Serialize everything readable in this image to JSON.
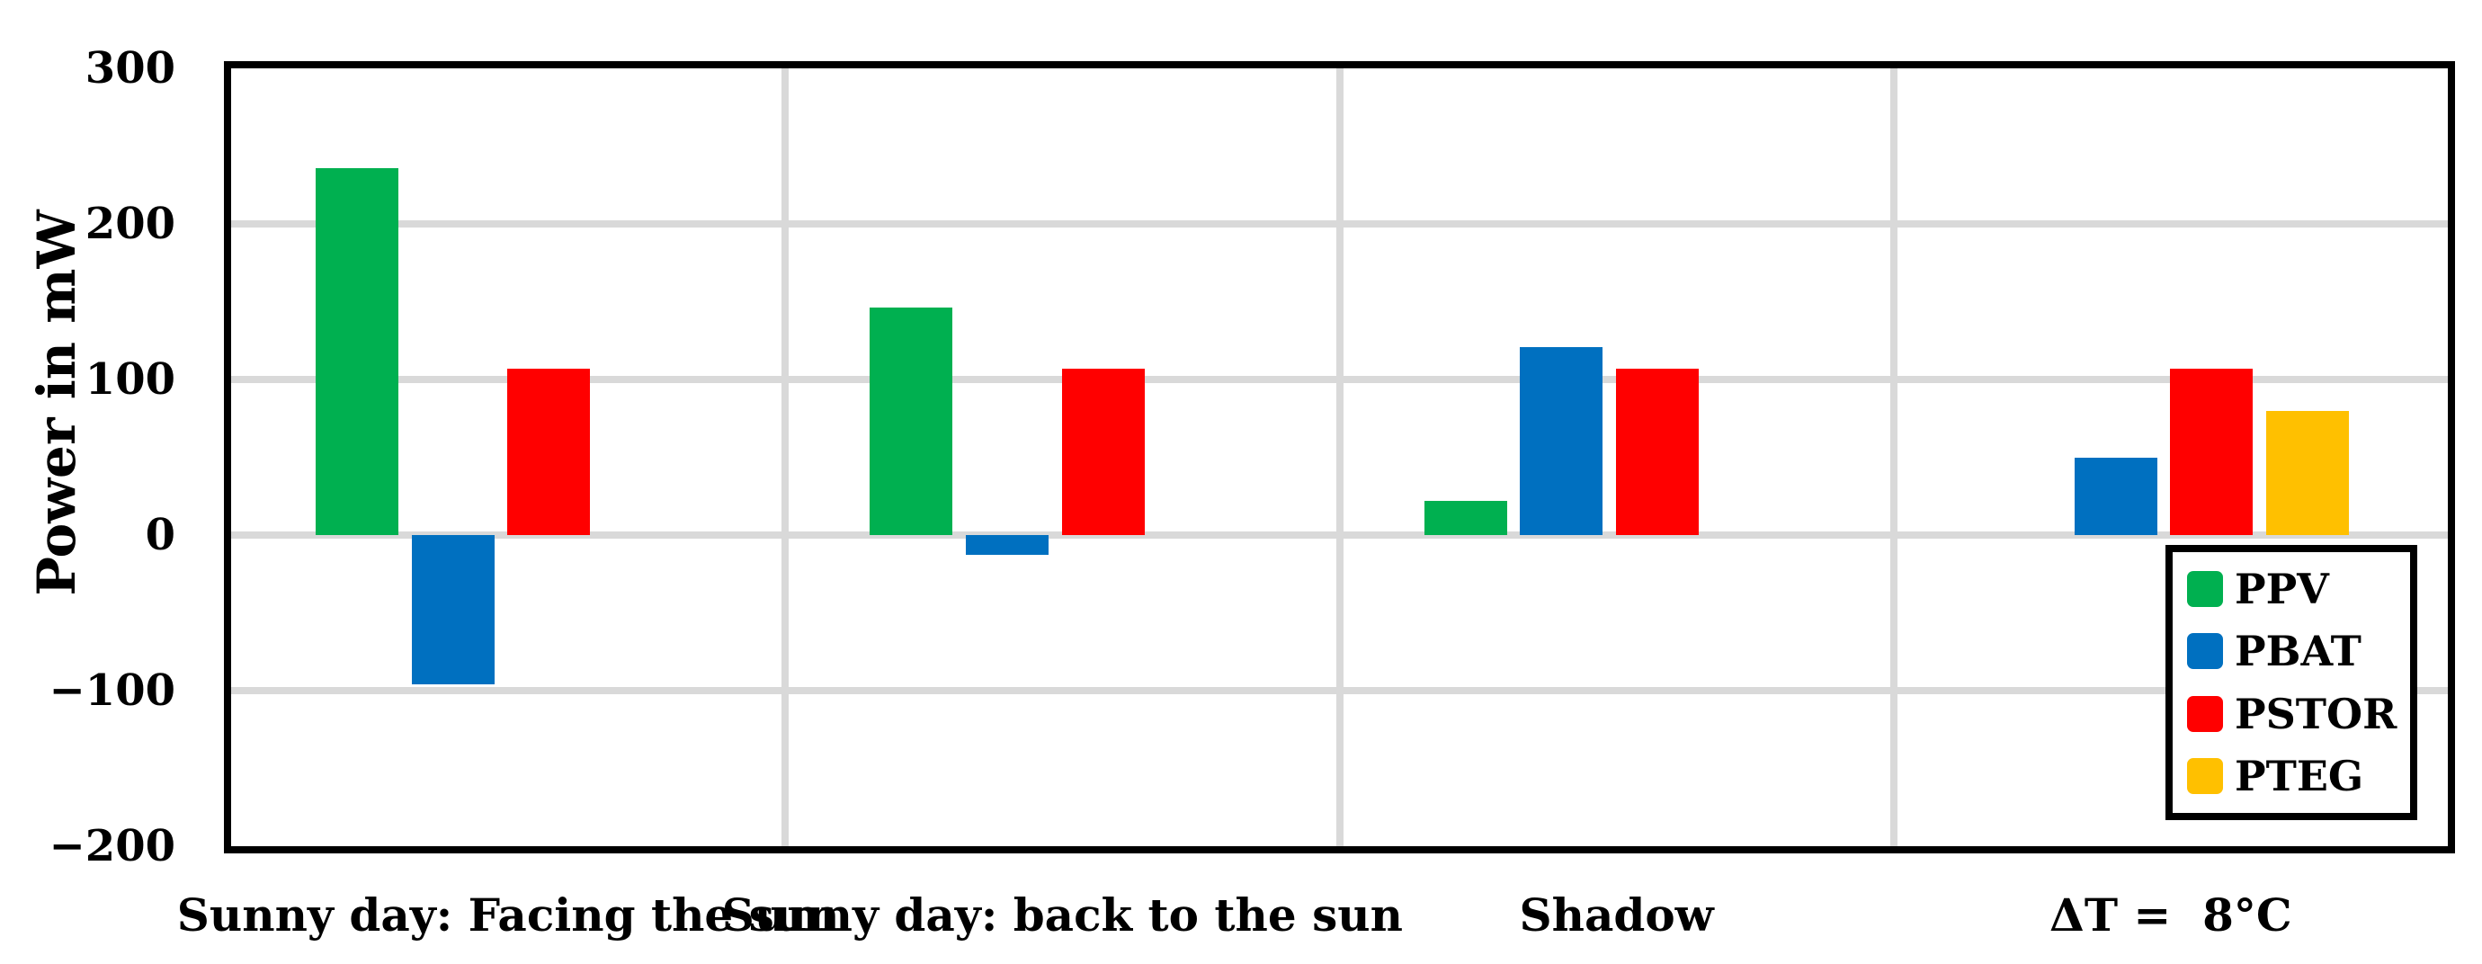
{
  "chart_data": {
    "type": "bar",
    "title": "",
    "xlabel": "",
    "ylabel": "Power in mW",
    "ylim": [
      -200,
      300
    ],
    "yticks": [
      300,
      200,
      100,
      0,
      -100,
      -200
    ],
    "grid": "horizontal gridlines at each ytick plus vertical category separators",
    "legend_position": "inside bottom-right",
    "categories": [
      "Sunny day: Facing the sun",
      "Sunny day: back to the sun",
      "Shadow",
      "ΔT =  8°C"
    ],
    "series": [
      {
        "name": "PPV",
        "color": "#00B050",
        "values": [
          236,
          146,
          22,
          null
        ]
      },
      {
        "name": "PBAT",
        "color": "#0070C0",
        "values": [
          -96,
          -13,
          121,
          50
        ]
      },
      {
        "name": "PSTOR",
        "color": "#FF0000",
        "values": [
          107,
          107,
          107,
          107
        ]
      },
      {
        "name": "PTEG",
        "color": "#FFC000",
        "values": [
          null,
          null,
          null,
          80
        ]
      }
    ],
    "colors": {
      "gridline": "#D9D9D9",
      "axis_frame": "#000000",
      "background": "#FFFFFF",
      "text": "#000000"
    }
  }
}
